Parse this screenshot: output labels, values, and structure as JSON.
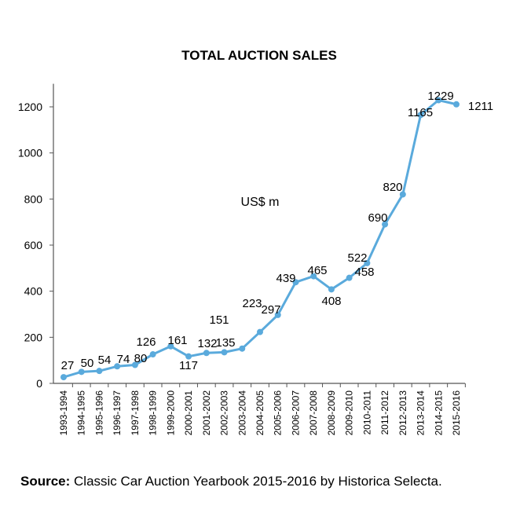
{
  "chart_data": {
    "type": "line",
    "title": "TOTAL AUCTION SALES",
    "annotation": "US$ m",
    "xlabel": "",
    "ylabel": "",
    "ylim": [
      0,
      1300
    ],
    "yticks": [
      0,
      200,
      400,
      600,
      800,
      1000,
      1200
    ],
    "grid": false,
    "categories": [
      "1993-1994",
      "1994-1995",
      "1995-1996",
      "1996-1997",
      "1997-1998",
      "1998-1999",
      "1999-2000",
      "2000-2001",
      "2001-2002",
      "2002-2003",
      "2003-2004",
      "2004-2005",
      "2005-2006",
      "2006-2007",
      "2007-2008",
      "2008-2009",
      "2009-2010",
      "2010-2011",
      "2011-2012",
      "2012-2013",
      "2013-2014",
      "2014-2015",
      "2015-2016"
    ],
    "series": [
      {
        "name": "Total auction sales",
        "color": "#5aaadc",
        "values": [
          27,
          50,
          54,
          74,
          80,
          126,
          161,
          117,
          132,
          135,
          151,
          223,
          297,
          439,
          465,
          408,
          458,
          522,
          690,
          820,
          1165,
          1229,
          1211
        ]
      }
    ]
  },
  "footer": {
    "source_label": "Source:",
    "source_text": " Classic Car Auction Yearbook 2015-2016 by Historica Selecta."
  }
}
